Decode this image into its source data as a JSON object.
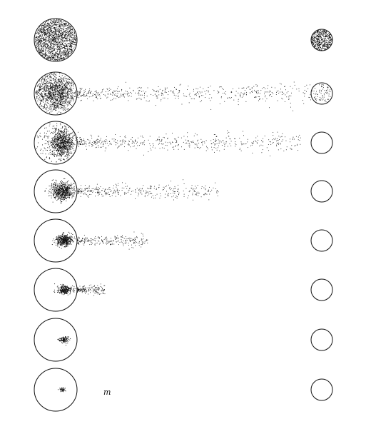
{
  "figure": {
    "label": "m",
    "ink_color": "#111111",
    "background_color": "#ffffff"
  },
  "rows": [
    {
      "left_fill": "full",
      "right_fill": "full",
      "stream_extent": 0
    },
    {
      "left_fill": "dense-center",
      "right_fill": "partial",
      "stream_extent": 1.0
    },
    {
      "left_fill": "concentrating",
      "right_fill": "empty",
      "stream_extent": 0.95
    },
    {
      "left_fill": "concentrating",
      "right_fill": "empty",
      "stream_extent": 0.6
    },
    {
      "left_fill": "concentrating",
      "right_fill": "empty",
      "stream_extent": 0.3
    },
    {
      "left_fill": "compact",
      "right_fill": "empty",
      "stream_extent": 0.12
    },
    {
      "left_fill": "small",
      "right_fill": "empty",
      "stream_extent": 0
    },
    {
      "left_fill": "tiny",
      "right_fill": "empty",
      "stream_extent": 0
    }
  ]
}
